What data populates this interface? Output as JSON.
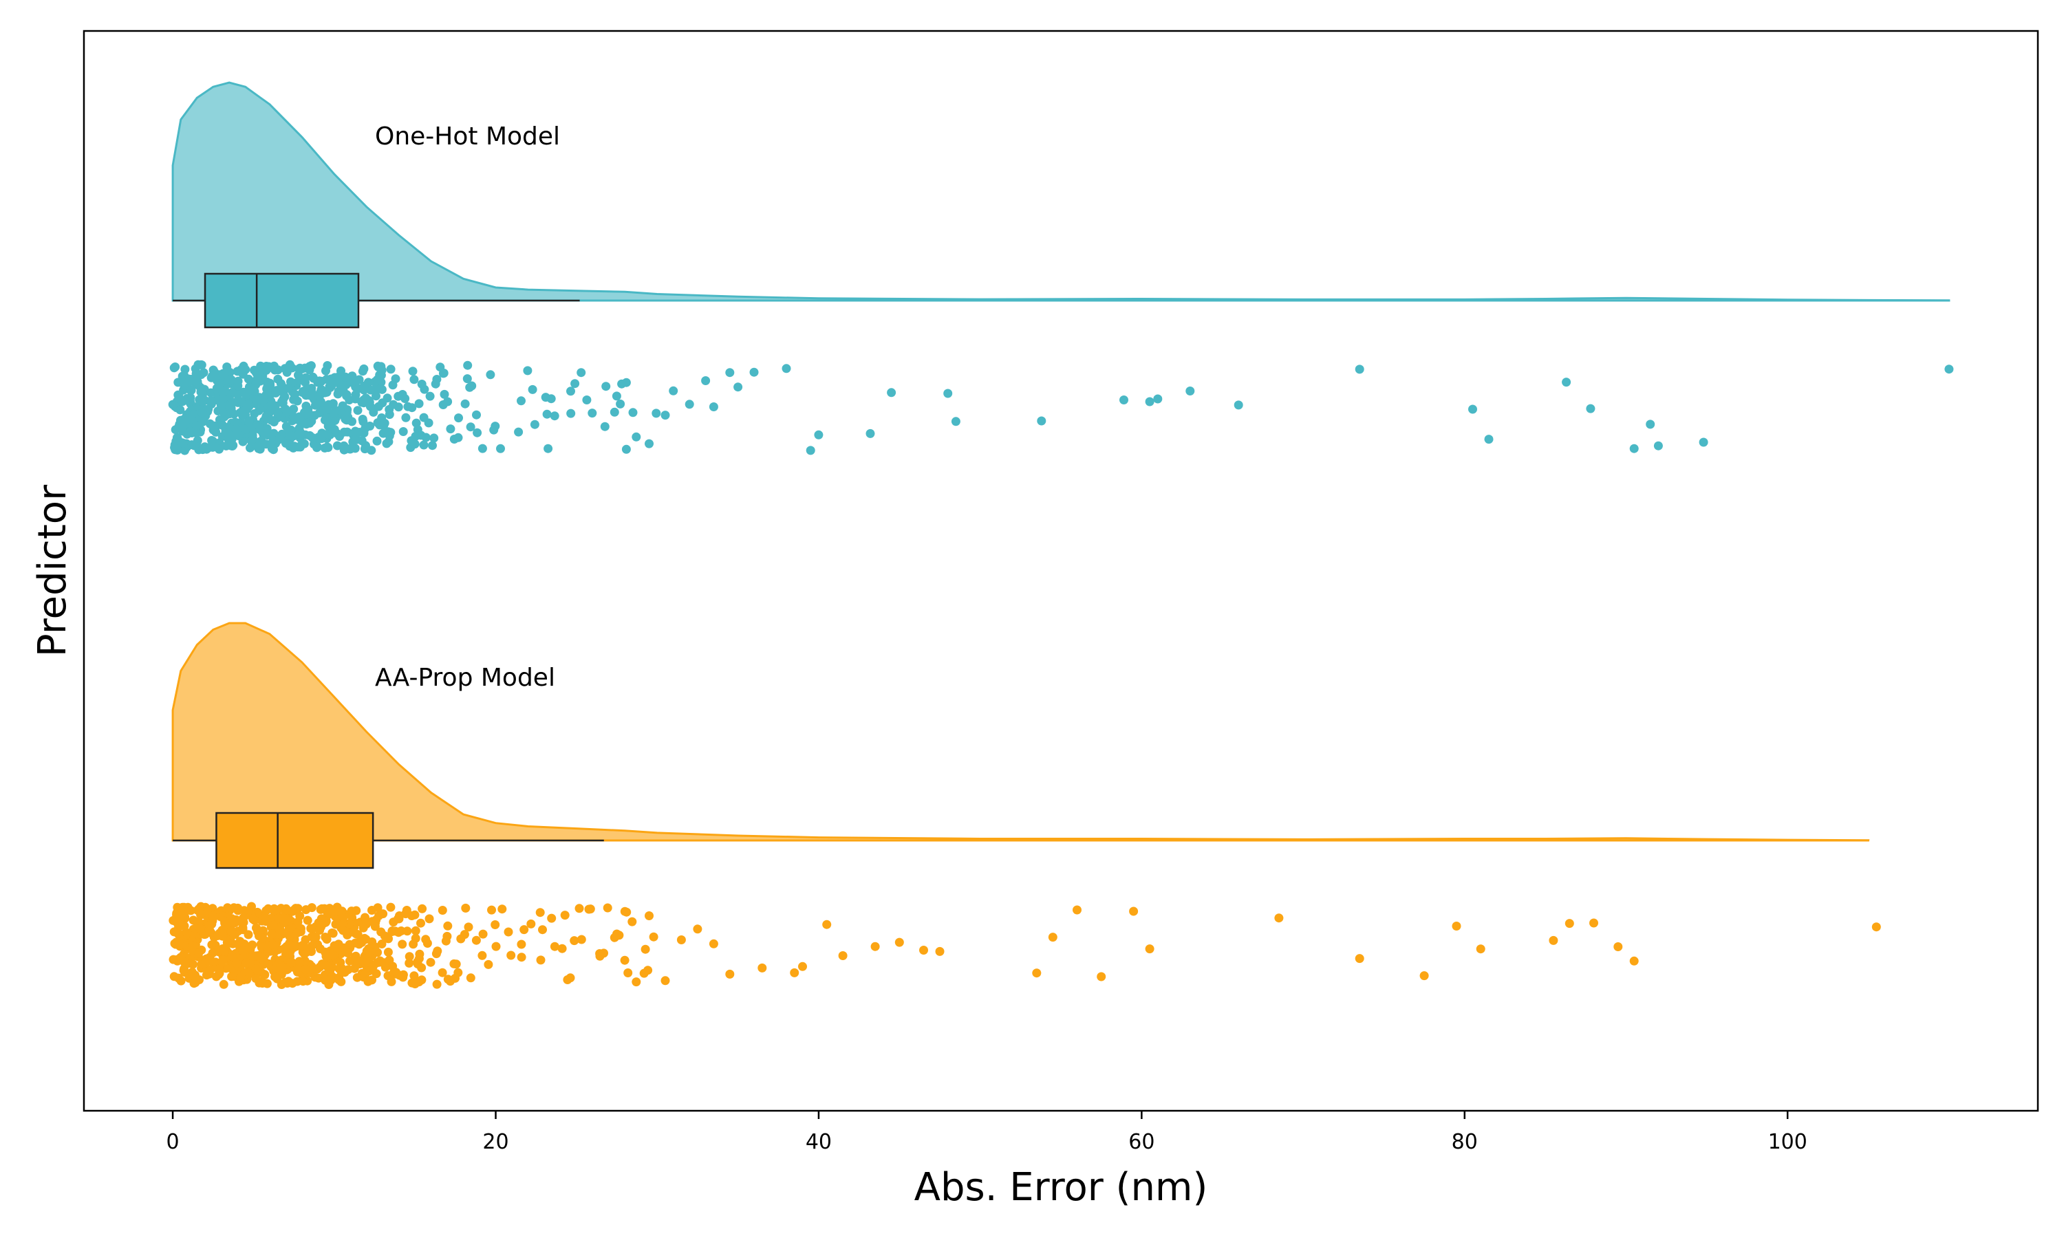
{
  "chart_data": {
    "type": "raincloud",
    "xlabel": "Abs. Error (nm)",
    "ylabel": "Predictor",
    "xlim": [
      -5.5,
      115.5
    ],
    "xticks": [
      0,
      20,
      40,
      60,
      80,
      100
    ],
    "grid": false,
    "series": [
      {
        "name": "One-Hot Model",
        "color": "#4ab8c5",
        "box": {
          "whisker_low": 0,
          "q1": 2.0,
          "median": 5.2,
          "q3": 11.5,
          "whisker_high": 25.2
        },
        "density_x": [
          0,
          0.5,
          1.5,
          2.5,
          3.5,
          4.5,
          6,
          8,
          10,
          12,
          14,
          16,
          18,
          20,
          22,
          25,
          28,
          30,
          35,
          40,
          50,
          60,
          70,
          80,
          85,
          90,
          95,
          100,
          105,
          110
        ],
        "density_y": [
          0.62,
          0.83,
          0.93,
          0.98,
          1.0,
          0.98,
          0.9,
          0.75,
          0.58,
          0.43,
          0.3,
          0.18,
          0.1,
          0.06,
          0.05,
          0.045,
          0.04,
          0.03,
          0.018,
          0.01,
          0.006,
          0.008,
          0.005,
          0.005,
          0.008,
          0.012,
          0.008,
          0.004,
          0.002,
          0.001
        ],
        "outliers": [
          27.8,
          28.5,
          29.5,
          30.5,
          31.0,
          32.0,
          33.5,
          33.0,
          34.5,
          35.0,
          36.0,
          38.0,
          39.5,
          40.0,
          43.2,
          44.5,
          48.0,
          48.5,
          53.8,
          58.9,
          60.5,
          61.0,
          63.0,
          66.0,
          73.5,
          80.5,
          81.5,
          86.3,
          87.8,
          90.5,
          91.5,
          92.0,
          94.8,
          110.0
        ]
      },
      {
        "name": "AA-Prop Model",
        "color": "#fba514",
        "box": {
          "whisker_low": 0,
          "q1": 2.7,
          "median": 6.5,
          "q3": 12.4,
          "whisker_high": 26.7
        },
        "density_x": [
          0,
          0.5,
          1.5,
          2.5,
          3.5,
          4.5,
          6,
          8,
          10,
          12,
          14,
          16,
          18,
          20,
          22,
          25,
          28,
          30,
          35,
          40,
          50,
          60,
          70,
          80,
          85,
          90,
          95,
          100,
          105
        ],
        "density_y": [
          0.6,
          0.78,
          0.9,
          0.97,
          1.0,
          1.0,
          0.95,
          0.82,
          0.66,
          0.5,
          0.35,
          0.22,
          0.12,
          0.08,
          0.065,
          0.055,
          0.045,
          0.035,
          0.022,
          0.014,
          0.008,
          0.008,
          0.005,
          0.008,
          0.008,
          0.01,
          0.006,
          0.003,
          0.001
        ],
        "outliers": [
          27.5,
          28.0,
          29.5,
          30.5,
          31.5,
          32.5,
          33.5,
          34.5,
          36.5,
          38.5,
          39.0,
          40.5,
          41.5,
          43.5,
          45.0,
          46.5,
          47.5,
          53.5,
          54.5,
          56.0,
          57.5,
          59.5,
          60.5,
          68.5,
          73.5,
          77.5,
          79.5,
          81.0,
          85.5,
          86.5,
          88.0,
          89.5,
          90.5,
          105.5
        ]
      }
    ]
  }
}
